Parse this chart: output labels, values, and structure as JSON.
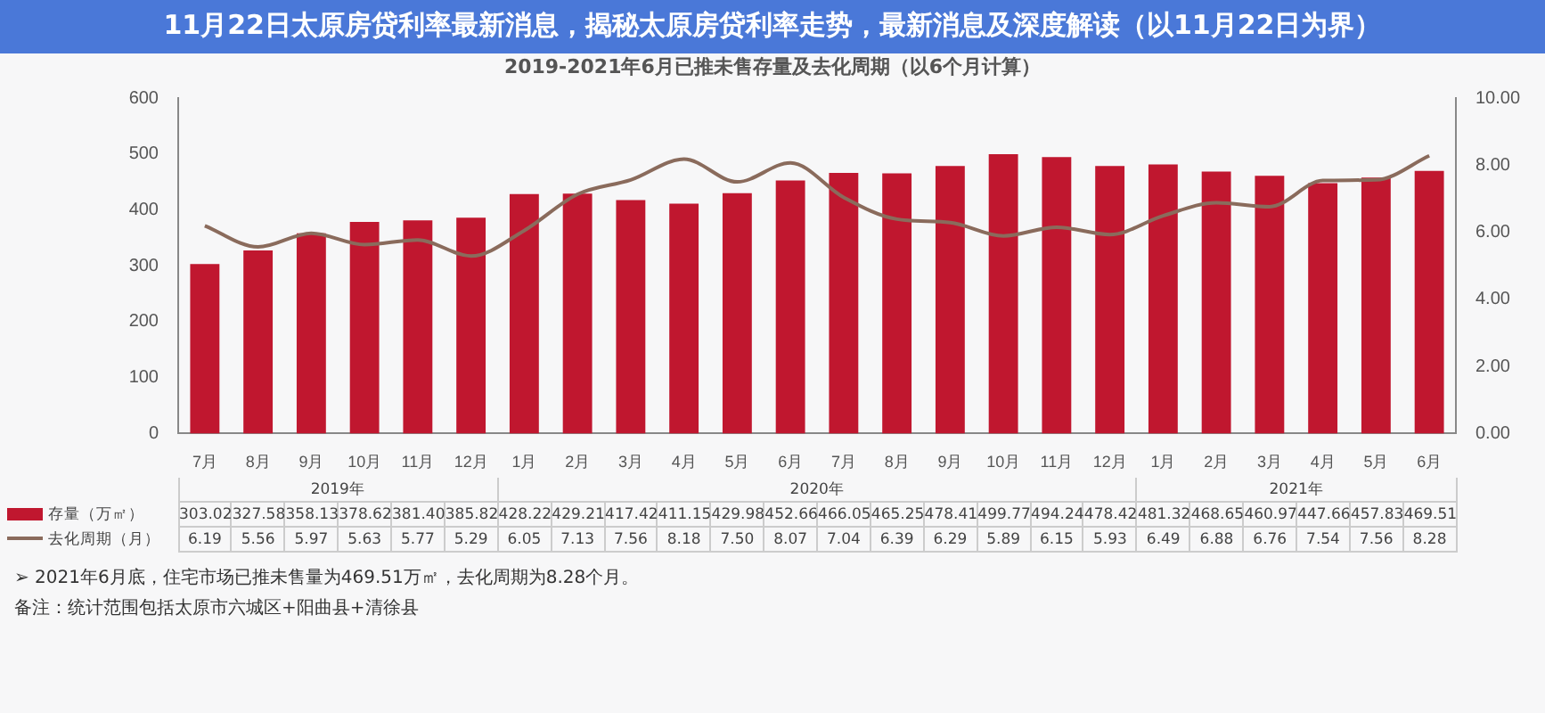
{
  "chart_data": {
    "type": "bar",
    "title": "11月22日太原房贷利率最新消息，揭秘太原房贷利率走势，最新消息及深度解读（以11月22日为界）",
    "subtitle": "2019-2021年6月已推未售存量及去化周期（以6个月计算）",
    "categories": [
      "7月",
      "8月",
      "9月",
      "10月",
      "11月",
      "12月",
      "1月",
      "2月",
      "3月",
      "4月",
      "5月",
      "6月",
      "7月",
      "8月",
      "9月",
      "10月",
      "11月",
      "12月",
      "1月",
      "2月",
      "3月",
      "4月",
      "5月",
      "6月"
    ],
    "series": [
      {
        "name": "存量（万㎡）",
        "color": "#c0172f",
        "values": [
          303.02,
          327.58,
          358.13,
          378.62,
          381.4,
          385.82,
          428.22,
          429.21,
          417.42,
          411.15,
          429.98,
          452.66,
          466.05,
          465.25,
          478.41,
          499.77,
          494.24,
          478.42,
          481.32,
          468.65,
          460.97,
          447.66,
          457.83,
          469.51
        ],
        "value_labels": [
          "303.02",
          "327.58",
          "358.13",
          "378.62",
          "381.40",
          "385.82",
          "428.22",
          "429.21",
          "417.42",
          "411.15",
          "429.98",
          "452.66",
          "466.05",
          "465.25",
          "478.41",
          "499.77",
          "494.24",
          "478.42",
          "481.32",
          "468.65",
          "460.97",
          "447.66",
          "457.83",
          "469.51"
        ]
      },
      {
        "name": "去化周期（月）",
        "type": "line",
        "axis": "y2",
        "color": "#8a6b5c",
        "values": [
          6.19,
          5.56,
          5.97,
          5.63,
          5.77,
          5.29,
          6.05,
          7.13,
          7.56,
          8.18,
          7.5,
          8.07,
          7.04,
          6.39,
          6.29,
          5.89,
          6.15,
          5.93,
          6.49,
          6.88,
          6.76,
          7.54,
          7.56,
          8.28
        ],
        "value_labels": [
          "6.19",
          "5.56",
          "5.97",
          "5.63",
          "5.77",
          "5.29",
          "6.05",
          "7.13",
          "7.56",
          "8.18",
          "7.50",
          "8.07",
          "7.04",
          "6.39",
          "6.29",
          "5.89",
          "6.15",
          "5.93",
          "6.49",
          "6.88",
          "6.76",
          "7.54",
          "7.56",
          "8.28"
        ]
      }
    ],
    "ylim": [
      0,
      600
    ],
    "yticks": [
      0,
      100,
      200,
      300,
      400,
      500,
      600
    ],
    "y2lim": [
      0,
      10
    ],
    "y2ticks": [
      {
        "value": 0,
        "label": "0.00"
      },
      {
        "value": 2,
        "label": "2.00"
      },
      {
        "value": 4,
        "label": "4.00"
      },
      {
        "value": 6,
        "label": "6.00"
      },
      {
        "value": 8,
        "label": "8.00"
      },
      {
        "value": 10,
        "label": "10.00"
      }
    ],
    "grid": false,
    "legend": "bottom left",
    "annotations": [
      "2019年",
      "2020年",
      "2021年",
      "➢ 2021年6月底，住宅市场已推未售量为469.51万㎡，去化周期为8.28个月。",
      "备注：统计范围包括太原市六城区+阳曲县+清徐县"
    ]
  }
}
